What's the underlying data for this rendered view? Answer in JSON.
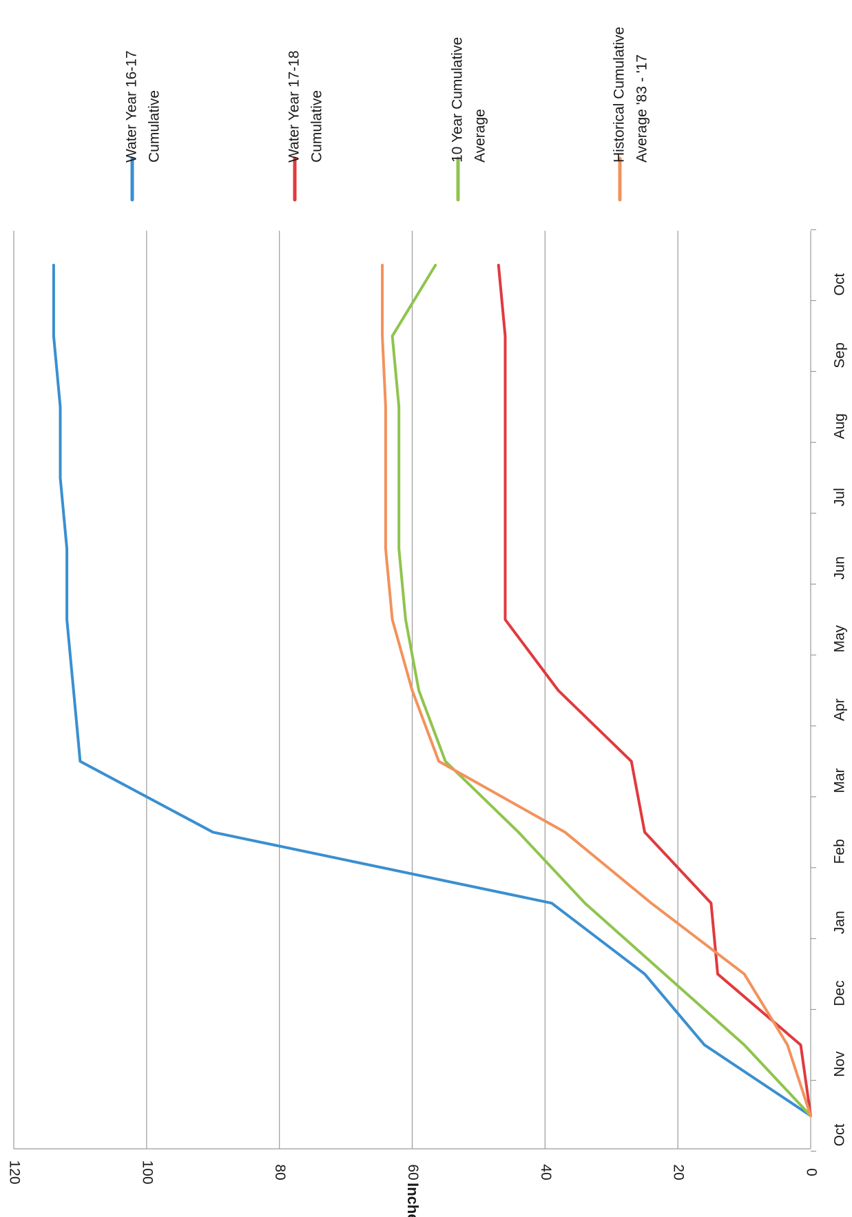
{
  "chart_data": {
    "type": "line",
    "orientation": "rotated-90-clockwise",
    "ylabel": "Inches",
    "xlabel": "",
    "ylim": [
      0,
      120
    ],
    "yticks": [
      0,
      20,
      40,
      60,
      80,
      100,
      120
    ],
    "categories": [
      "Oct",
      "Nov",
      "Dec",
      "Jan",
      "Feb",
      "Mar",
      "Apr",
      "May",
      "Jun",
      "Jul",
      "Aug",
      "Sep",
      "Oct"
    ],
    "grid": true,
    "legend_position": "right",
    "series": [
      {
        "name": "Water Year 16-17 Cumulative",
        "color": "#3a8fd0",
        "x": [
          0,
          1,
          2,
          3,
          4,
          5,
          6,
          7,
          8,
          9,
          10,
          11,
          12
        ],
        "values": [
          0,
          16,
          25,
          39,
          90,
          110,
          111,
          112,
          112,
          113,
          113,
          114,
          114
        ]
      },
      {
        "name": "Water Year 17-18 Cumulative",
        "color": "#e03a3e",
        "x": [
          0,
          1,
          2,
          3,
          4,
          5,
          6,
          7,
          8,
          9,
          10,
          11,
          12
        ],
        "values": [
          0,
          1.5,
          14,
          15,
          25,
          27,
          38,
          46,
          46,
          46,
          46,
          46,
          47
        ]
      },
      {
        "name": "10 Year Cumulative Average",
        "color": "#8fc44d",
        "x": [
          0,
          1,
          2,
          3,
          4,
          5,
          6,
          7,
          8,
          9,
          10,
          11,
          12
        ],
        "values": [
          0,
          10,
          22,
          34,
          44,
          55,
          59,
          61,
          62,
          62,
          62,
          63,
          56.5
        ]
      },
      {
        "name": "Historical Cumulative Average '83 - '17",
        "color": "#f2925c",
        "x": [
          0,
          1,
          2,
          3,
          4,
          5,
          6,
          7,
          8,
          9,
          10,
          11,
          12
        ],
        "values": [
          0,
          3.5,
          10,
          24,
          37,
          56,
          60,
          63,
          64,
          64,
          64,
          64.5,
          64.5
        ]
      }
    ],
    "legend": [
      {
        "line1": "Water Year 16-17",
        "line2": "Cumulative",
        "color": "#3a8fd0"
      },
      {
        "line1": "Water Year 17-18",
        "line2": "Cumulative",
        "color": "#e03a3e"
      },
      {
        "line1": "10 Year Cumulative",
        "line2": "Average",
        "color": "#8fc44d"
      },
      {
        "line1": "Historical Cumulative",
        "line2": "Average '83 - '17",
        "color": "#f2925c"
      }
    ]
  }
}
